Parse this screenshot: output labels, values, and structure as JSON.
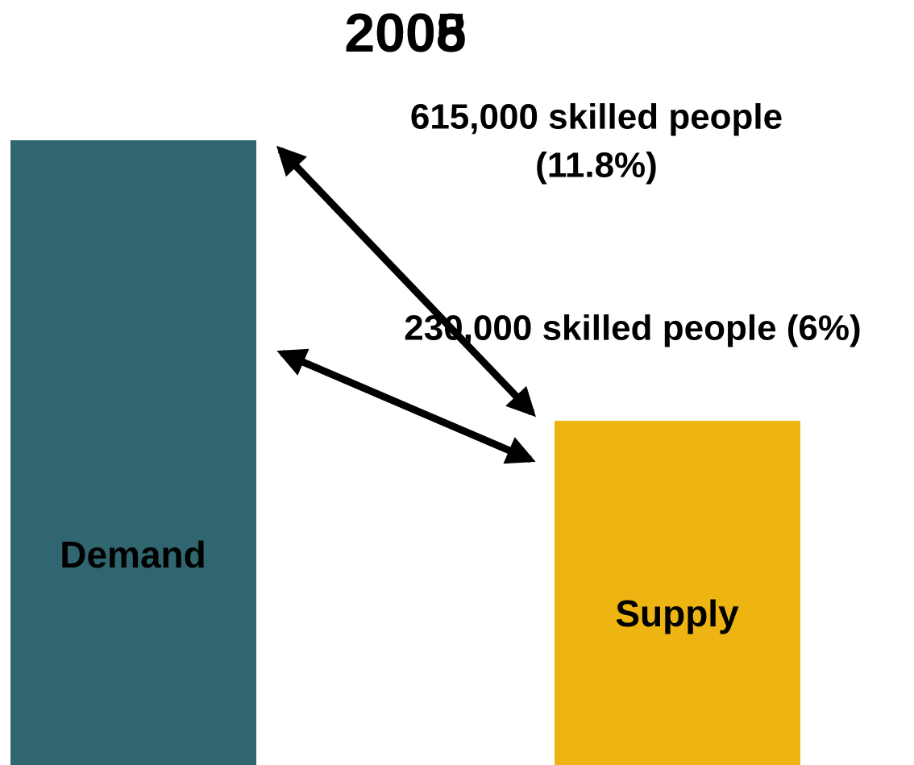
{
  "titles": [
    "2008",
    "2005"
  ],
  "bars": [
    {
      "label": "Demand"
    },
    {
      "label": "Supply"
    }
  ],
  "annotations": [
    {
      "lines": [
        "615,000 skilled people",
        "(11.8%)"
      ]
    },
    {
      "lines": [
        "230,000 skilled people (6%)"
      ]
    }
  ]
}
